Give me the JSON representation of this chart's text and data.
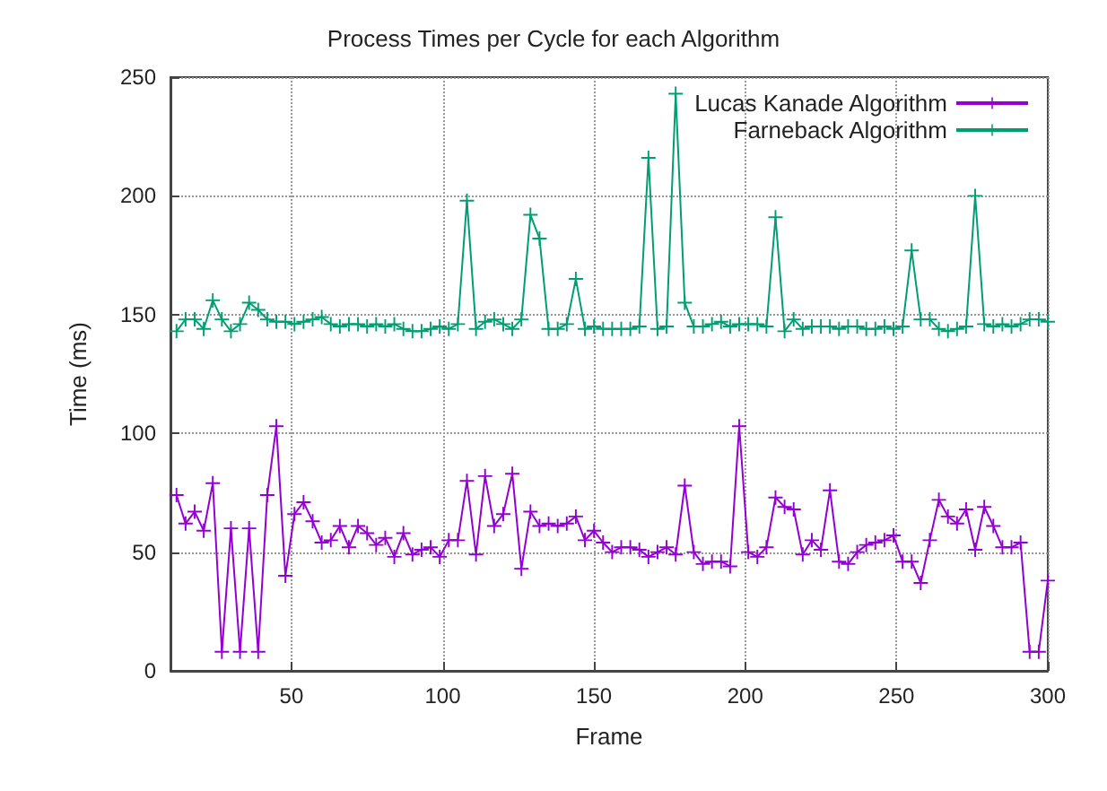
{
  "chart_data": {
    "type": "line",
    "title": "Process Times per Cycle for each Algorithm",
    "xlabel": "Frame",
    "ylabel": "Time (ms)",
    "xlim": [
      10,
      300
    ],
    "xticks": [
      50,
      100,
      150,
      200,
      250,
      300
    ],
    "ylim": [
      0,
      250
    ],
    "yticks": [
      0,
      50,
      100,
      150,
      200,
      250
    ],
    "grid": true,
    "legend": "top right",
    "marker": "cross",
    "line_style": "solid",
    "series": [
      {
        "name": "Lucas Kanade Algorithm",
        "color": "#9400d3",
        "x": [
          12,
          15,
          18,
          21,
          24,
          27,
          30,
          33,
          36,
          39,
          42,
          45,
          48,
          51,
          54,
          57,
          60,
          63,
          66,
          69,
          72,
          75,
          78,
          81,
          84,
          87,
          90,
          93,
          96,
          99,
          102,
          105,
          108,
          111,
          114,
          117,
          120,
          123,
          126,
          129,
          132,
          135,
          138,
          141,
          144,
          147,
          150,
          153,
          156,
          159,
          162,
          165,
          168,
          171,
          174,
          177,
          180,
          183,
          186,
          189,
          192,
          195,
          198,
          201,
          204,
          207,
          210,
          213,
          216,
          219,
          222,
          225,
          228,
          231,
          234,
          237,
          240,
          243,
          246,
          249,
          252,
          255,
          258,
          261,
          264,
          267,
          270,
          273,
          276,
          279,
          282,
          285,
          288,
          291,
          294,
          297,
          300
        ],
        "values": [
          74,
          62,
          67,
          59,
          79,
          8,
          60,
          8,
          60,
          8,
          74,
          103,
          40,
          66,
          71,
          63,
          54,
          55,
          61,
          52,
          61,
          58,
          53,
          56,
          48,
          58,
          49,
          51,
          52,
          48,
          55,
          55,
          80,
          49,
          82,
          61,
          66,
          83,
          43,
          67,
          61,
          62,
          61,
          62,
          65,
          55,
          59,
          54,
          50,
          52,
          52,
          51,
          48,
          50,
          52,
          49,
          78,
          50,
          45,
          46,
          46,
          44,
          103,
          50,
          48,
          52,
          73,
          69,
          68,
          49,
          55,
          51,
          76,
          46,
          45,
          50,
          53,
          54,
          55,
          57,
          46,
          46,
          37,
          55,
          72,
          65,
          62,
          68,
          51,
          69,
          61,
          52,
          52,
          54,
          8,
          8,
          38
        ]
      },
      {
        "name": "Farneback Algorithm",
        "color": "#009e73",
        "x": [
          12,
          15,
          18,
          21,
          24,
          27,
          30,
          33,
          36,
          39,
          42,
          45,
          48,
          51,
          54,
          57,
          60,
          63,
          66,
          69,
          72,
          75,
          78,
          81,
          84,
          87,
          90,
          93,
          96,
          99,
          102,
          105,
          108,
          111,
          114,
          117,
          120,
          123,
          126,
          129,
          132,
          135,
          138,
          141,
          144,
          147,
          150,
          153,
          156,
          159,
          162,
          165,
          168,
          171,
          174,
          177,
          180,
          183,
          186,
          189,
          192,
          195,
          198,
          201,
          204,
          207,
          210,
          213,
          216,
          219,
          222,
          225,
          228,
          231,
          234,
          237,
          240,
          243,
          246,
          249,
          252,
          255,
          258,
          261,
          264,
          267,
          270,
          273,
          276,
          279,
          282,
          285,
          288,
          291,
          294,
          297,
          300
        ],
        "values": [
          143,
          148,
          148,
          144,
          156,
          148,
          143,
          146,
          155,
          152,
          148,
          147,
          147,
          146,
          147,
          148,
          149,
          146,
          145,
          146,
          146,
          145,
          146,
          145,
          146,
          144,
          143,
          143,
          144,
          145,
          144,
          146,
          198,
          144,
          147,
          148,
          146,
          144,
          148,
          192,
          182,
          144,
          144,
          146,
          165,
          144,
          145,
          144,
          144,
          144,
          144,
          145,
          216,
          144,
          145,
          243,
          155,
          145,
          145,
          146,
          147,
          145,
          146,
          146,
          146,
          145,
          191,
          143,
          148,
          144,
          145,
          145,
          145,
          144,
          145,
          145,
          144,
          144,
          145,
          144,
          145,
          177,
          148,
          148,
          144,
          143,
          144,
          145,
          200,
          146,
          145,
          146,
          145,
          146,
          148,
          148,
          147
        ]
      }
    ]
  }
}
